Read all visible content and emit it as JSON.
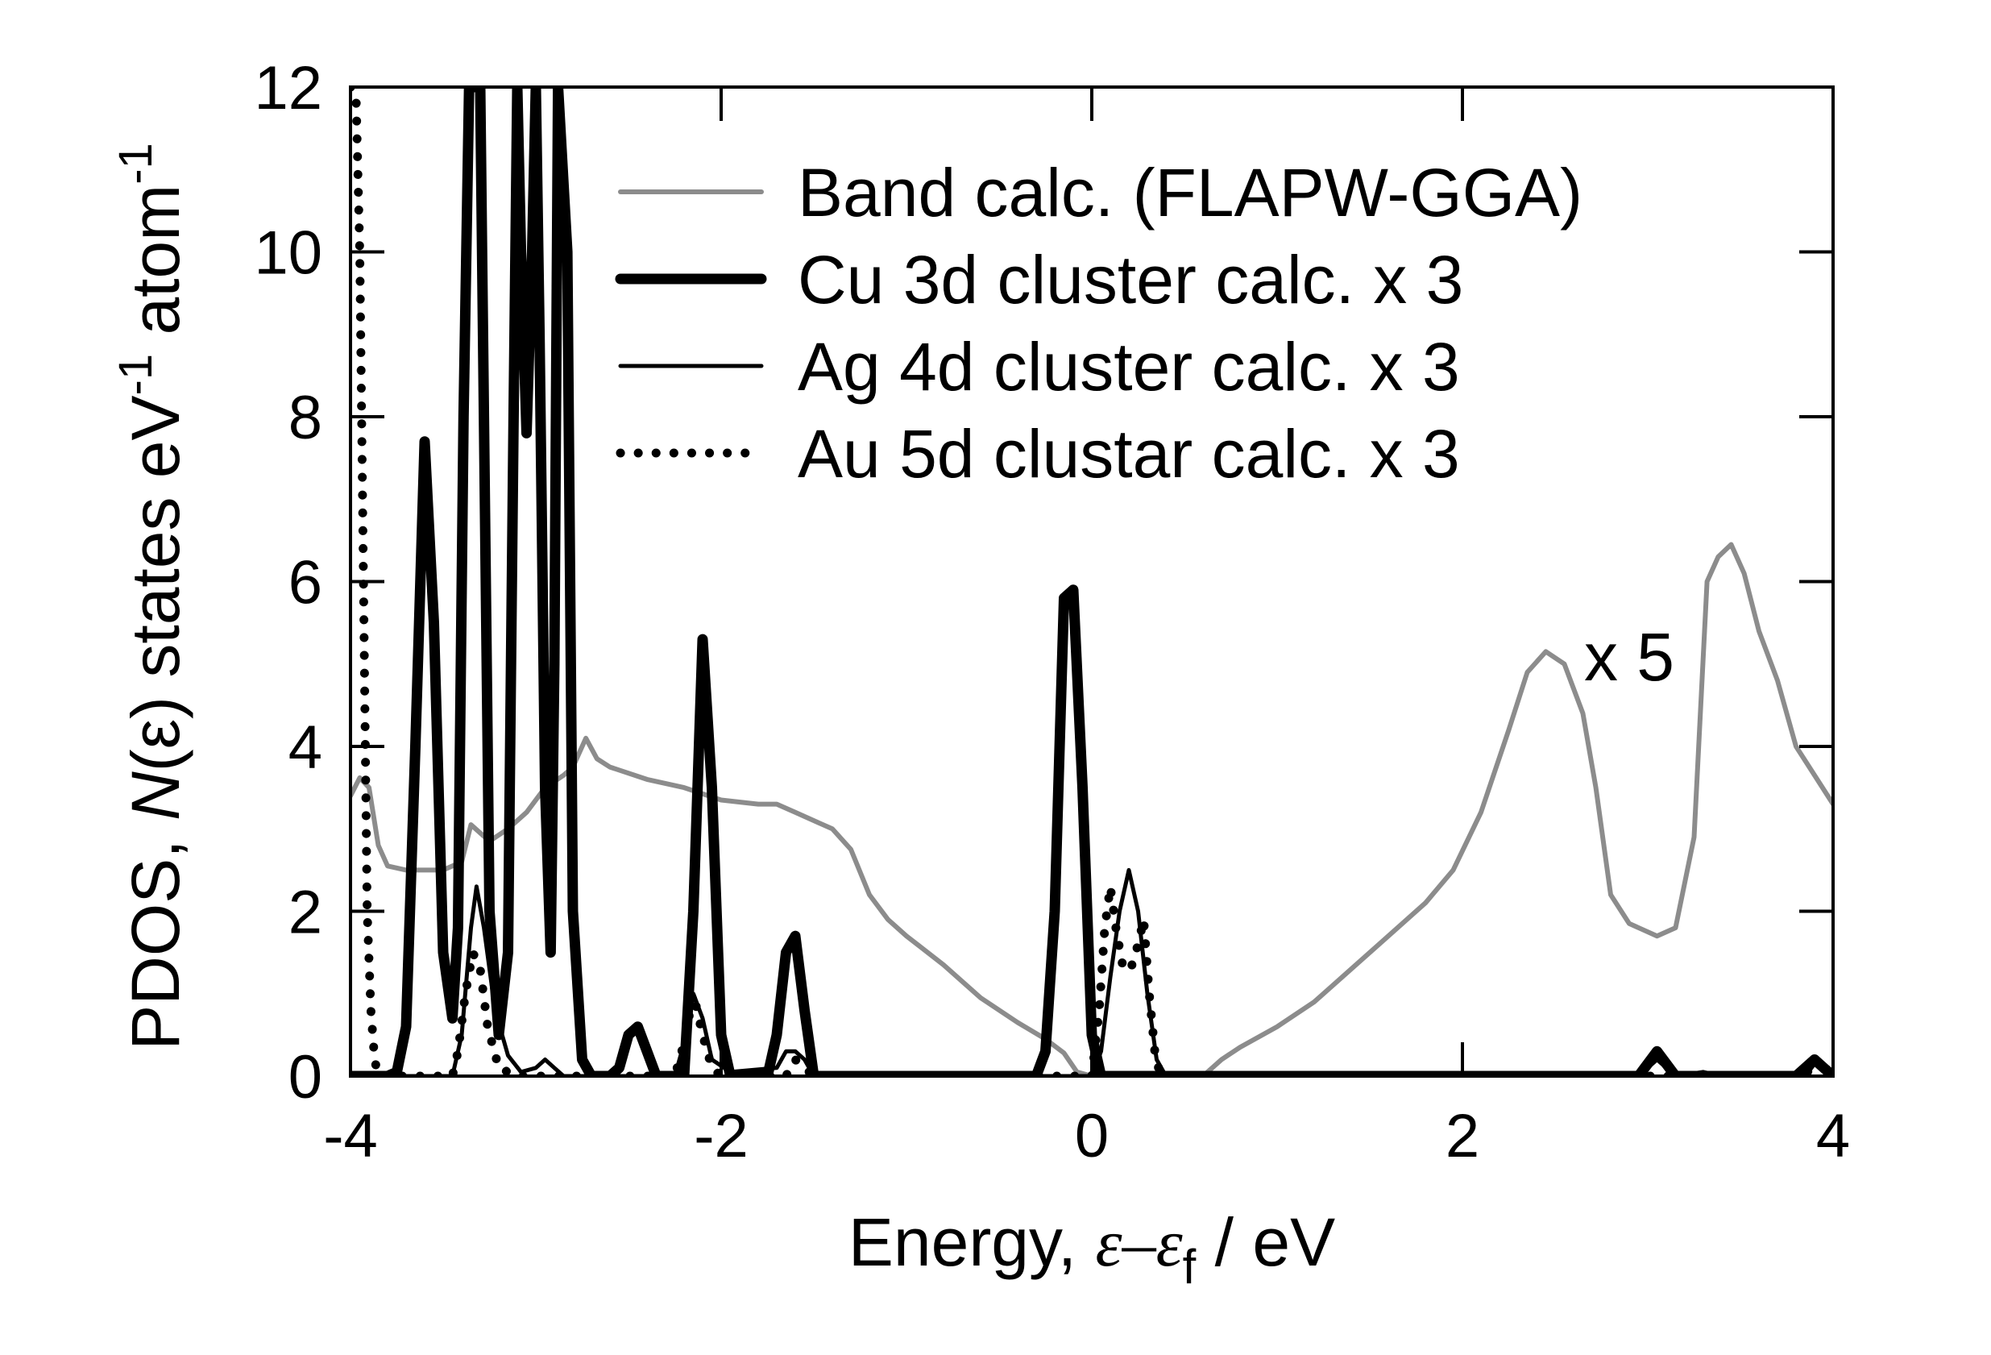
{
  "chart_data": {
    "type": "line",
    "xlabel": {
      "prefix": "Energy, ",
      "symbol": "ε–ε",
      "subscript": "f",
      "suffix": " / eV"
    },
    "ylabel": {
      "prefix": "PDOS, ",
      "italic": "N",
      "middle": "(ε) states eV",
      "sup1": "-1",
      "atom": " atom",
      "sup2": "-1"
    },
    "xlim": [
      -4,
      4
    ],
    "ylim": [
      0,
      12
    ],
    "xticks": [
      -4,
      -2,
      0,
      2,
      4
    ],
    "yticks": [
      0,
      2,
      4,
      6,
      8,
      10,
      12
    ],
    "xtick_labels": [
      "-4",
      "-2",
      "0",
      "2",
      "4"
    ],
    "ytick_labels": [
      "0",
      "2",
      "4",
      "6",
      "8",
      "10",
      "12"
    ],
    "grid": false,
    "legend_position": "top-right",
    "annotations": [
      {
        "text": "x 5",
        "x": 2.9,
        "y": 4.8
      }
    ],
    "series": [
      {
        "name": "Band calc. (FLAPW-GGA)",
        "style": "gray-line",
        "color": "#8c8c8c",
        "points": [
          [
            -4.0,
            3.4
          ],
          [
            -3.95,
            3.62
          ],
          [
            -3.9,
            3.5
          ],
          [
            -3.85,
            2.8
          ],
          [
            -3.8,
            2.55
          ],
          [
            -3.7,
            2.5
          ],
          [
            -3.5,
            2.5
          ],
          [
            -3.4,
            2.6
          ],
          [
            -3.35,
            3.05
          ],
          [
            -3.3,
            2.95
          ],
          [
            -3.25,
            2.85
          ],
          [
            -3.15,
            3.0
          ],
          [
            -3.05,
            3.2
          ],
          [
            -2.95,
            3.5
          ],
          [
            -2.85,
            3.65
          ],
          [
            -2.8,
            3.75
          ],
          [
            -2.73,
            4.1
          ],
          [
            -2.67,
            3.85
          ],
          [
            -2.6,
            3.75
          ],
          [
            -2.4,
            3.6
          ],
          [
            -2.2,
            3.5
          ],
          [
            -2.0,
            3.35
          ],
          [
            -1.8,
            3.3
          ],
          [
            -1.7,
            3.3
          ],
          [
            -1.6,
            3.2
          ],
          [
            -1.4,
            3.0
          ],
          [
            -1.3,
            2.75
          ],
          [
            -1.2,
            2.2
          ],
          [
            -1.1,
            1.9
          ],
          [
            -1.0,
            1.7
          ],
          [
            -0.8,
            1.35
          ],
          [
            -0.6,
            0.95
          ],
          [
            -0.4,
            0.65
          ],
          [
            -0.25,
            0.45
          ],
          [
            -0.15,
            0.28
          ],
          [
            -0.08,
            0.05
          ],
          [
            0.0,
            0.0
          ],
          [
            0.6,
            0.0
          ],
          [
            0.7,
            0.2
          ],
          [
            0.8,
            0.35
          ],
          [
            1.0,
            0.6
          ],
          [
            1.2,
            0.9
          ],
          [
            1.4,
            1.3
          ],
          [
            1.6,
            1.7
          ],
          [
            1.8,
            2.1
          ],
          [
            1.95,
            2.5
          ],
          [
            2.1,
            3.2
          ],
          [
            2.25,
            4.2
          ],
          [
            2.35,
            4.9
          ],
          [
            2.45,
            5.15
          ],
          [
            2.55,
            5.0
          ],
          [
            2.65,
            4.4
          ],
          [
            2.72,
            3.5
          ],
          [
            2.8,
            2.2
          ],
          [
            2.9,
            1.85
          ],
          [
            3.05,
            1.7
          ],
          [
            3.15,
            1.8
          ],
          [
            3.25,
            2.9
          ],
          [
            3.32,
            6.0
          ],
          [
            3.38,
            6.3
          ],
          [
            3.45,
            6.45
          ],
          [
            3.52,
            6.1
          ],
          [
            3.6,
            5.4
          ],
          [
            3.7,
            4.8
          ],
          [
            3.8,
            4.0
          ],
          [
            3.9,
            3.65
          ],
          [
            4.0,
            3.3
          ]
        ]
      },
      {
        "name": "Cu 3d cluster calc. x 3",
        "style": "thick-black",
        "color": "#000000",
        "points": [
          [
            -4.0,
            0.0
          ],
          [
            -3.8,
            0.0
          ],
          [
            -3.75,
            0.05
          ],
          [
            -3.7,
            0.6
          ],
          [
            -3.65,
            4.0
          ],
          [
            -3.6,
            7.7
          ],
          [
            -3.55,
            5.5
          ],
          [
            -3.5,
            1.5
          ],
          [
            -3.45,
            0.7
          ],
          [
            -3.42,
            1.8
          ],
          [
            -3.39,
            8.0
          ],
          [
            -3.36,
            12.0
          ],
          [
            -3.3,
            12.0
          ],
          [
            -3.28,
            8.0
          ],
          [
            -3.25,
            2.0
          ],
          [
            -3.2,
            0.5
          ],
          [
            -3.15,
            1.5
          ],
          [
            -3.12,
            8.0
          ],
          [
            -3.1,
            12.0
          ],
          [
            -3.08,
            10.0
          ],
          [
            -3.05,
            7.8
          ],
          [
            -3.02,
            10.0
          ],
          [
            -3.0,
            12.0
          ],
          [
            -2.98,
            9.0
          ],
          [
            -2.95,
            3.5
          ],
          [
            -2.92,
            1.5
          ],
          [
            -2.9,
            5.0
          ],
          [
            -2.88,
            12.0
          ],
          [
            -2.83,
            10.0
          ],
          [
            -2.8,
            2.0
          ],
          [
            -2.75,
            0.2
          ],
          [
            -2.7,
            0.0
          ],
          [
            -2.6,
            0.0
          ],
          [
            -2.55,
            0.1
          ],
          [
            -2.5,
            0.5
          ],
          [
            -2.45,
            0.6
          ],
          [
            -2.4,
            0.3
          ],
          [
            -2.35,
            0.0
          ],
          [
            -2.2,
            0.0
          ],
          [
            -2.15,
            2.0
          ],
          [
            -2.1,
            5.3
          ],
          [
            -2.05,
            3.5
          ],
          [
            -2.0,
            0.5
          ],
          [
            -1.95,
            0.0
          ],
          [
            -1.75,
            0.0
          ],
          [
            -1.7,
            0.5
          ],
          [
            -1.65,
            1.5
          ],
          [
            -1.6,
            1.7
          ],
          [
            -1.55,
            0.8
          ],
          [
            -1.5,
            0.0
          ],
          [
            -0.3,
            0.0
          ],
          [
            -0.25,
            0.3
          ],
          [
            -0.2,
            2.0
          ],
          [
            -0.15,
            5.8
          ],
          [
            -0.1,
            5.9
          ],
          [
            -0.05,
            3.5
          ],
          [
            0.0,
            0.5
          ],
          [
            0.05,
            0.0
          ],
          [
            2.95,
            0.0
          ],
          [
            3.0,
            0.15
          ],
          [
            3.05,
            0.3
          ],
          [
            3.1,
            0.15
          ],
          [
            3.15,
            0.0
          ],
          [
            3.8,
            0.0
          ],
          [
            3.85,
            0.1
          ],
          [
            3.9,
            0.2
          ],
          [
            3.95,
            0.1
          ],
          [
            4.0,
            0.0
          ]
        ]
      },
      {
        "name": "Ag 4d cluster calc. x 3",
        "style": "thin-black",
        "color": "#000000",
        "points": [
          [
            -4.0,
            0.0
          ],
          [
            -3.45,
            0.0
          ],
          [
            -3.4,
            0.5
          ],
          [
            -3.35,
            1.8
          ],
          [
            -3.32,
            2.3
          ],
          [
            -3.28,
            1.8
          ],
          [
            -3.22,
            0.8
          ],
          [
            -3.15,
            0.25
          ],
          [
            -3.08,
            0.05
          ],
          [
            -3.0,
            0.1
          ],
          [
            -2.95,
            0.2
          ],
          [
            -2.9,
            0.1
          ],
          [
            -2.85,
            0.0
          ],
          [
            -2.25,
            0.0
          ],
          [
            -2.2,
            0.4
          ],
          [
            -2.15,
            1.0
          ],
          [
            -2.1,
            0.7
          ],
          [
            -2.05,
            0.2
          ],
          [
            -1.95,
            0.05
          ],
          [
            -1.7,
            0.1
          ],
          [
            -1.65,
            0.3
          ],
          [
            -1.6,
            0.3
          ],
          [
            -1.55,
            0.2
          ],
          [
            -1.5,
            0.0
          ],
          [
            0.0,
            0.0
          ],
          [
            0.05,
            0.3
          ],
          [
            0.1,
            1.2
          ],
          [
            0.15,
            2.0
          ],
          [
            0.2,
            2.5
          ],
          [
            0.25,
            2.0
          ],
          [
            0.3,
            1.0
          ],
          [
            0.35,
            0.2
          ],
          [
            0.4,
            0.0
          ],
          [
            2.95,
            0.0
          ],
          [
            3.0,
            0.1
          ],
          [
            3.05,
            0.2
          ],
          [
            3.1,
            0.1
          ],
          [
            3.15,
            0.0
          ],
          [
            3.3,
            0.05
          ],
          [
            3.4,
            0.0
          ],
          [
            3.85,
            0.0
          ],
          [
            3.9,
            0.15
          ],
          [
            3.95,
            0.05
          ],
          [
            4.0,
            0.0
          ]
        ]
      },
      {
        "name": "Au 5d clustar calc. x 3",
        "style": "dotted-black",
        "color": "#000000",
        "points": [
          [
            -4.0,
            12.0
          ],
          [
            -3.97,
            11.9
          ],
          [
            -3.95,
            10.0
          ],
          [
            -3.93,
            6.0
          ],
          [
            -3.91,
            2.0
          ],
          [
            -3.89,
            0.8
          ],
          [
            -3.87,
            0.2
          ],
          [
            -3.85,
            0.0
          ],
          [
            -3.45,
            0.0
          ],
          [
            -3.42,
            0.3
          ],
          [
            -3.38,
            1.0
          ],
          [
            -3.34,
            1.5
          ],
          [
            -3.3,
            1.3
          ],
          [
            -3.26,
            0.6
          ],
          [
            -3.2,
            0.1
          ],
          [
            -3.1,
            0.0
          ],
          [
            -2.25,
            0.0
          ],
          [
            -2.2,
            0.4
          ],
          [
            -2.15,
            1.0
          ],
          [
            -2.1,
            0.5
          ],
          [
            -2.05,
            0.1
          ],
          [
            -2.0,
            0.0
          ],
          [
            -1.65,
            0.0
          ],
          [
            -1.6,
            0.2
          ],
          [
            -1.55,
            0.1
          ],
          [
            -1.5,
            0.0
          ],
          [
            0.0,
            0.0
          ],
          [
            0.04,
            0.8
          ],
          [
            0.07,
            1.8
          ],
          [
            0.1,
            2.3
          ],
          [
            0.13,
            1.8
          ],
          [
            0.17,
            1.3
          ],
          [
            0.21,
            1.3
          ],
          [
            0.25,
            1.6
          ],
          [
            0.28,
            1.9
          ],
          [
            0.31,
            1.0
          ],
          [
            0.34,
            0.3
          ],
          [
            0.37,
            0.0
          ],
          [
            3.85,
            0.0
          ],
          [
            3.9,
            0.2
          ],
          [
            3.95,
            0.1
          ],
          [
            4.0,
            0.0
          ]
        ]
      }
    ]
  }
}
